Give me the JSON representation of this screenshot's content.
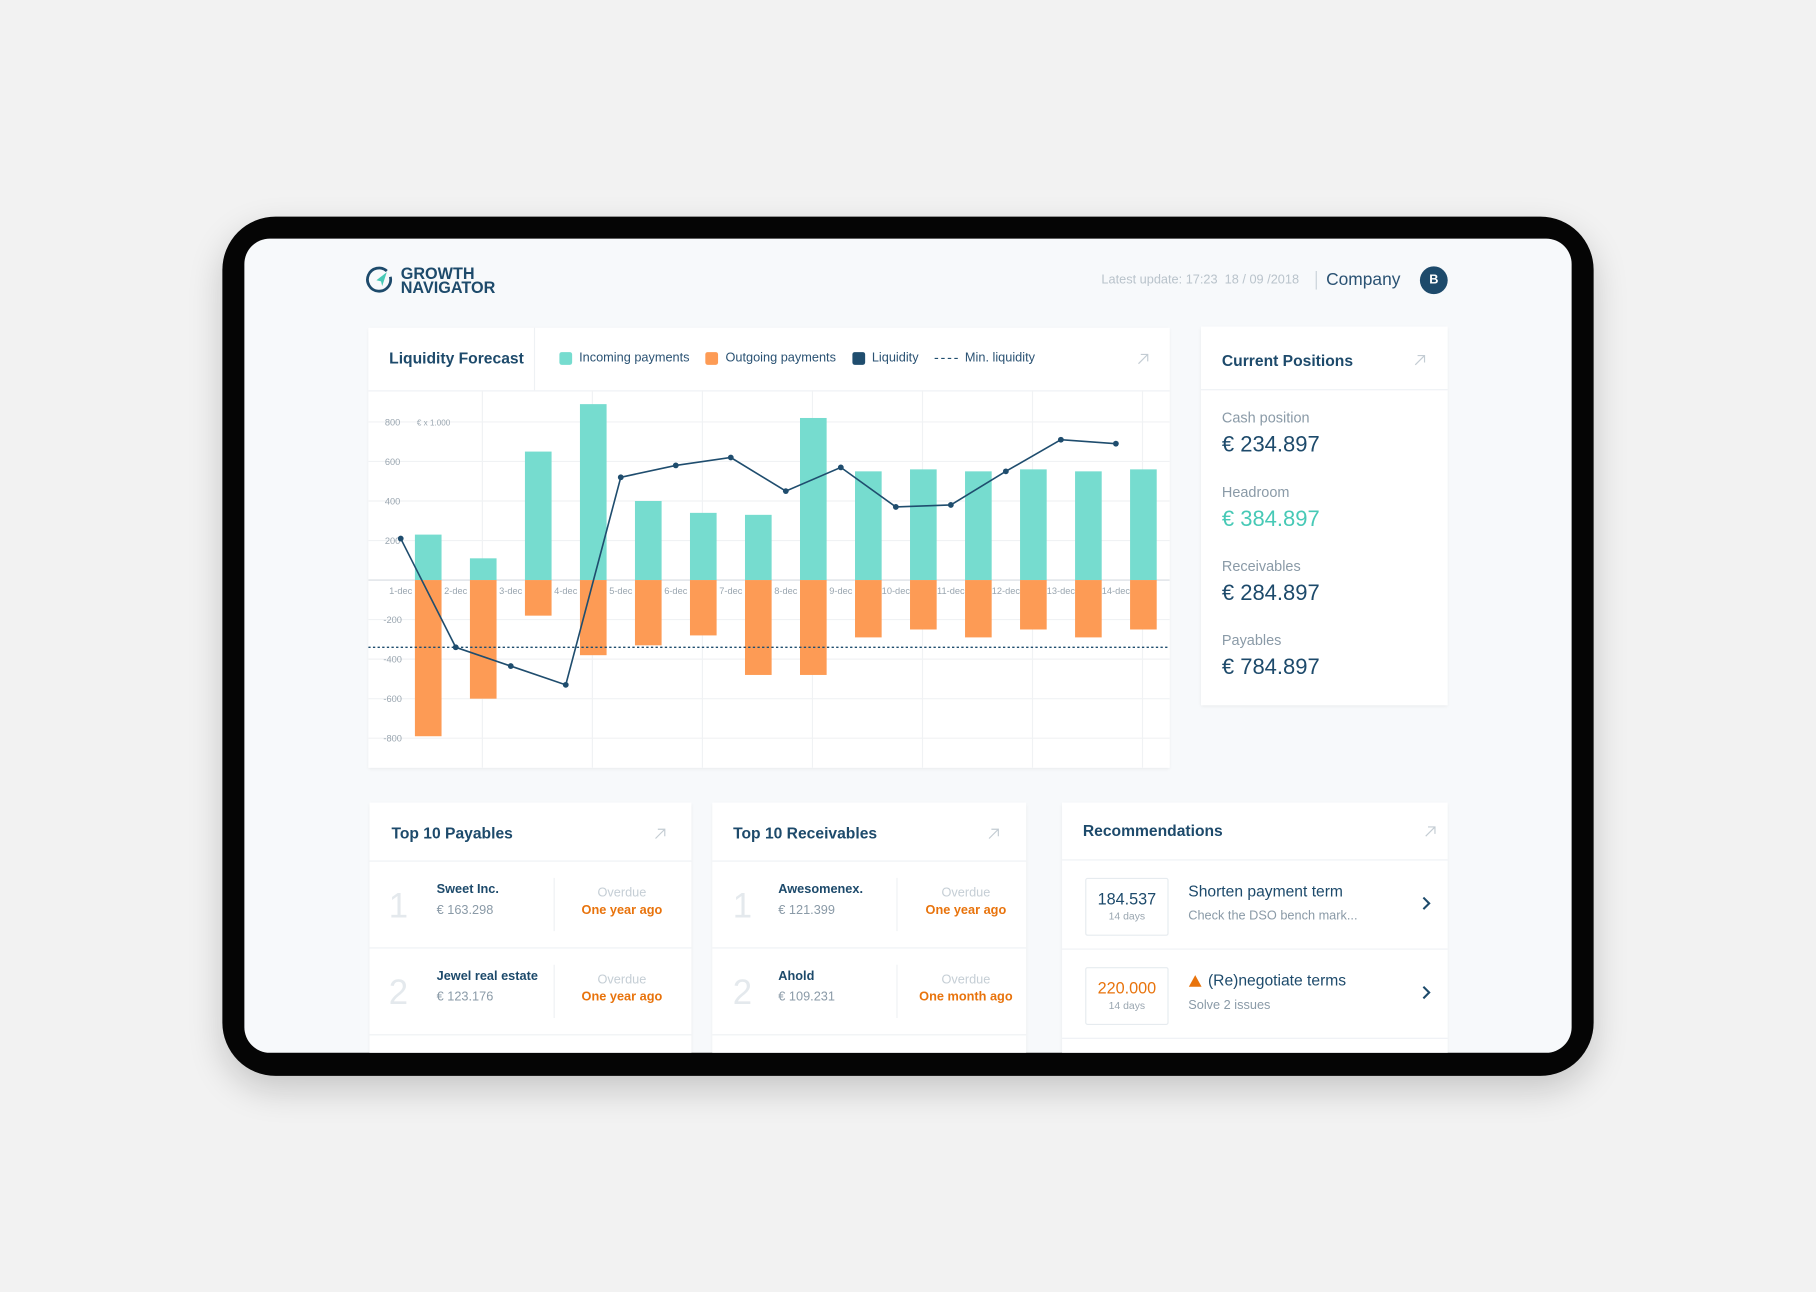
{
  "header": {
    "logo": [
      "GROWTH",
      "NAVIGATOR"
    ],
    "latest_update": "Latest update: 17:23",
    "date": "18 / 09 /2018",
    "company": "Company",
    "avatar": "B"
  },
  "chart_data": {
    "type": "bar",
    "title": "Liquidity Forecast",
    "unit": "€ x 1.000",
    "categories": [
      "1-dec",
      "2-dec",
      "3-dec",
      "4-dec",
      "5-dec",
      "6-dec",
      "7-dec",
      "8-dec",
      "9-dec",
      "10-dec",
      "11-dec",
      "12-dec",
      "13-dec",
      "14-dec"
    ],
    "series": [
      {
        "name": "Incoming payments",
        "type": "bar",
        "color": "#76dccf",
        "values": [
          230,
          110,
          650,
          890,
          400,
          340,
          330,
          820,
          550,
          560,
          550,
          560,
          550,
          560
        ]
      },
      {
        "name": "Outgoing payments",
        "type": "bar",
        "color": "#fd9b55",
        "values": [
          -790,
          -600,
          -180,
          -380,
          -330,
          -280,
          -480,
          -480,
          -290,
          -250,
          -290,
          -250,
          -290,
          -250
        ]
      },
      {
        "name": "Liquidity",
        "type": "line",
        "color": "#1f4d6e",
        "values": [
          210,
          -340,
          -435,
          -530,
          520,
          580,
          620,
          450,
          570,
          370,
          380,
          550,
          710,
          690
        ]
      }
    ],
    "reference_lines": [
      {
        "name": "Min. liquidity",
        "value": -340,
        "color": "#1f4d6e"
      }
    ],
    "ylim": [
      -950,
      960
    ],
    "yticks": [
      -800,
      -600,
      -400,
      -200,
      200,
      400,
      600,
      800
    ],
    "grid": true
  },
  "current_positions": {
    "title": "Current Positions",
    "items": [
      {
        "label": "Cash position",
        "value": "€ 234.897",
        "color": "#1d4a6b"
      },
      {
        "label": "Headroom",
        "value": "€ 384.897",
        "color": "#47c9b6"
      },
      {
        "label": "Receivables",
        "value": "€ 284.897",
        "color": "#1d4a6b"
      },
      {
        "label": "Payables",
        "value": "€ 784.897",
        "color": "#1d4a6b"
      }
    ]
  },
  "payables": {
    "title": "Top 10 Payables",
    "rows": [
      {
        "rank": 1,
        "name": "Sweet Inc.",
        "amount": "€ 163.298",
        "status_label": "Overdue",
        "status": "One year ago"
      },
      {
        "rank": 2,
        "name": "Jewel real estate",
        "amount": "€ 123.176",
        "status_label": "Overdue",
        "status": "One year ago"
      }
    ]
  },
  "receivables": {
    "title": "Top 10 Receivables",
    "rows": [
      {
        "rank": 1,
        "name": "Awesomenex.",
        "amount": "€ 121.399",
        "status_label": "Overdue",
        "status": "One year ago"
      },
      {
        "rank": 2,
        "name": "Ahold",
        "amount": "€ 109.231",
        "status_label": "Overdue",
        "status": "One month ago"
      }
    ]
  },
  "recommendations": {
    "title": "Recommendations",
    "items": [
      {
        "value": "184.537",
        "days": "14 days",
        "title": "Shorten payment term",
        "detail": "Check the DSO bench mark...",
        "value_color": "#1d4a6b",
        "warning": false
      },
      {
        "value": "220.000",
        "days": "14 days",
        "title": "(Re)negotiate terms",
        "detail": "Solve 2 issues",
        "value_color": "#e8730c",
        "warning": true
      }
    ]
  }
}
